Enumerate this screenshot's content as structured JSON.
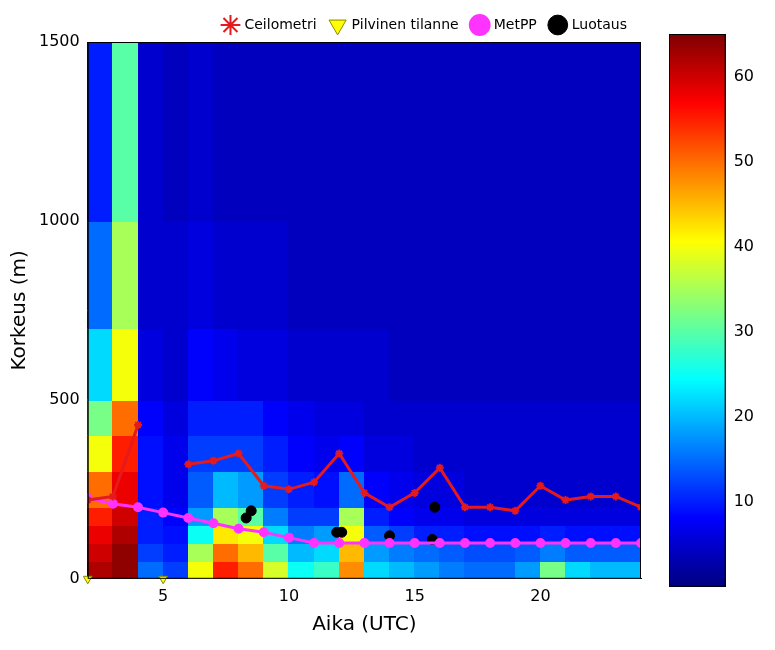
{
  "chart_data": {
    "type": "line",
    "x_label": "Aika (UTC)",
    "y_label": "Korkeus (m)",
    "xlim": [
      2,
      24
    ],
    "xticks": [
      5,
      10,
      15,
      20
    ],
    "ylim": [
      0,
      1500
    ],
    "yticks": [
      0,
      500,
      1000,
      1500
    ],
    "grid": false,
    "legend": "top",
    "series": [
      {
        "name": "Ceilometri",
        "type": "line",
        "color": "#e41a1c",
        "marker": "star",
        "line_style": "solid",
        "x": [
          2,
          3,
          4,
          5,
          6,
          7,
          8,
          9,
          10,
          11,
          12,
          13,
          14,
          15,
          16,
          17,
          18,
          19,
          20,
          21,
          22,
          23,
          24
        ],
        "values": [
          220,
          230,
          430,
          null,
          320,
          330,
          350,
          260,
          250,
          270,
          350,
          240,
          200,
          240,
          310,
          200,
          200,
          190,
          260,
          220,
          230,
          230,
          200
        ]
      },
      {
        "name": "Pilvinen tilanne",
        "type": "scatter",
        "color": "#ffff00",
        "marker": "triangle-down",
        "x": [
          2,
          5
        ],
        "values": [
          0,
          0
        ]
      },
      {
        "name": "MetPP",
        "type": "line",
        "color": "#ff33ff",
        "marker": "circle",
        "line_style": "solid",
        "x": [
          2,
          3,
          4,
          5,
          6,
          7,
          8,
          9,
          10,
          11,
          12,
          13,
          14,
          15,
          16,
          17,
          18,
          19,
          20,
          21,
          22,
          23,
          24
        ],
        "values": [
          225,
          210,
          200,
          185,
          170,
          155,
          140,
          130,
          115,
          100,
          100,
          100,
          100,
          100,
          100,
          100,
          100,
          100,
          100,
          100,
          100,
          100,
          100
        ]
      },
      {
        "name": "Luotaus",
        "type": "scatter",
        "color": "#000000",
        "marker": "circle",
        "x": [
          8.3,
          8.5,
          11.9,
          12.1,
          14,
          15.7,
          15.8
        ],
        "values": [
          170,
          190,
          130,
          130,
          120,
          110,
          200
        ]
      }
    ],
    "heatmap": {
      "x_edges": [
        2,
        3,
        4,
        5,
        6,
        7,
        8,
        9,
        10,
        11,
        12,
        13,
        14,
        15,
        16,
        17,
        18,
        19,
        20,
        21,
        22,
        23,
        24
      ],
      "y_edges": [
        0,
        50,
        100,
        150,
        200,
        300,
        400,
        500,
        700,
        1000,
        1500
      ],
      "cells": [
        [
          62,
          64,
          15,
          12,
          40,
          55,
          50,
          38,
          25,
          28,
          48,
          22,
          20,
          18,
          16,
          15,
          15,
          18,
          32,
          22,
          20,
          20
        ],
        [
          60,
          64,
          12,
          10,
          35,
          50,
          45,
          30,
          20,
          22,
          45,
          18,
          16,
          15,
          14,
          13,
          13,
          14,
          16,
          14,
          14,
          14
        ],
        [
          58,
          62,
          10,
          9,
          25,
          42,
          40,
          22,
          16,
          18,
          40,
          14,
          12,
          10,
          10,
          9,
          9,
          9,
          10,
          9,
          9,
          9
        ],
        [
          55,
          60,
          10,
          8,
          18,
          35,
          30,
          16,
          12,
          12,
          35,
          10,
          8,
          7,
          7,
          6,
          6,
          6,
          6,
          6,
          6,
          6
        ],
        [
          50,
          58,
          9,
          7,
          14,
          20,
          18,
          12,
          10,
          9,
          15,
          8,
          7,
          6,
          6,
          5,
          5,
          5,
          5,
          5,
          5,
          5
        ],
        [
          40,
          55,
          9,
          7,
          12,
          12,
          12,
          10,
          8,
          7,
          8,
          6,
          6,
          5,
          5,
          5,
          5,
          5,
          5,
          5,
          5,
          5
        ],
        [
          32,
          50,
          8,
          6,
          10,
          10,
          10,
          8,
          7,
          6,
          6,
          5,
          5,
          5,
          5,
          5,
          5,
          5,
          5,
          5,
          5,
          5
        ],
        [
          22,
          40,
          6,
          5,
          8,
          7,
          6,
          6,
          5,
          5,
          5,
          5,
          4,
          4,
          4,
          4,
          4,
          4,
          4,
          4,
          4,
          4
        ],
        [
          15,
          35,
          5,
          5,
          6,
          5,
          5,
          5,
          4,
          4,
          4,
          4,
          4,
          4,
          4,
          4,
          4,
          4,
          4,
          4,
          4,
          4
        ],
        [
          10,
          30,
          5,
          4,
          5,
          4,
          4,
          4,
          4,
          4,
          4,
          4,
          4,
          4,
          4,
          4,
          4,
          4,
          4,
          4,
          4,
          4
        ]
      ],
      "colorbar_lim": [
        0,
        65
      ],
      "colorbar_ticks": [
        10,
        20,
        30,
        40,
        50,
        60
      ]
    }
  }
}
